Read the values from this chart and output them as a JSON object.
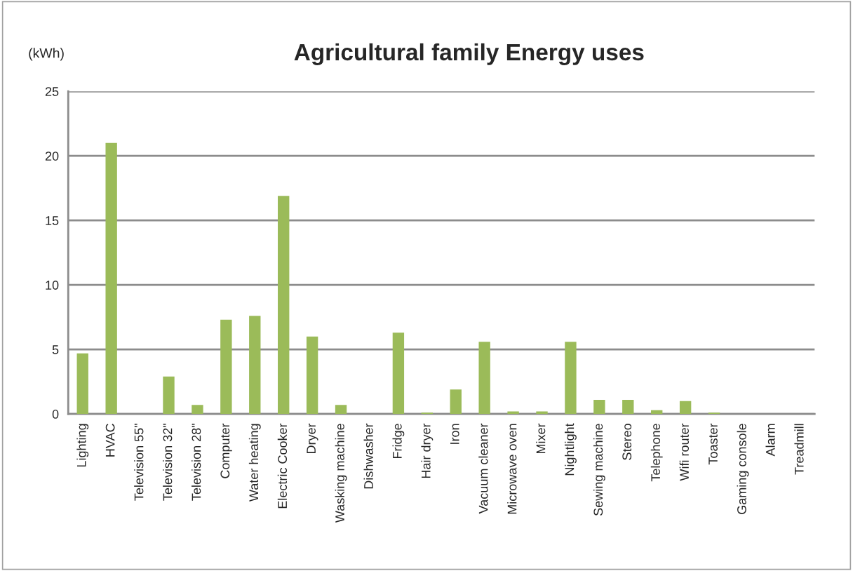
{
  "chart_data": {
    "type": "bar",
    "title": "Agricultural family Energy uses",
    "ylabel": "(kWh)",
    "categories": [
      "Lighting",
      "HVAC",
      "Television 55\"",
      "Television 32\"",
      "Television 28\"",
      "Computer",
      "Water heating",
      "Electric Cooker",
      "Dryer",
      "Wasking machine",
      "Dishwasher",
      "Fridge",
      "Hair dryer",
      "Iron",
      "Vacuum cleaner",
      "Microwave oven",
      "Mixer",
      "Nightlight",
      "Sewing machine",
      "Stereo",
      "Telephone",
      "Wifi router",
      "Toaster",
      "Gaming console",
      "Alarm",
      "Treadmill"
    ],
    "values": [
      4.7,
      21.0,
      0,
      2.9,
      0.7,
      7.3,
      7.6,
      16.9,
      6.0,
      0.7,
      0,
      6.3,
      0.1,
      1.9,
      5.6,
      0.2,
      0.2,
      5.6,
      1.1,
      1.1,
      0.3,
      1.0,
      0.1,
      0,
      0,
      0
    ],
    "color": "#9bbb59",
    "ylim": [
      0,
      25
    ],
    "yticks": [
      0,
      5,
      10,
      15,
      20,
      25
    ],
    "grid": "y",
    "legend": false
  }
}
